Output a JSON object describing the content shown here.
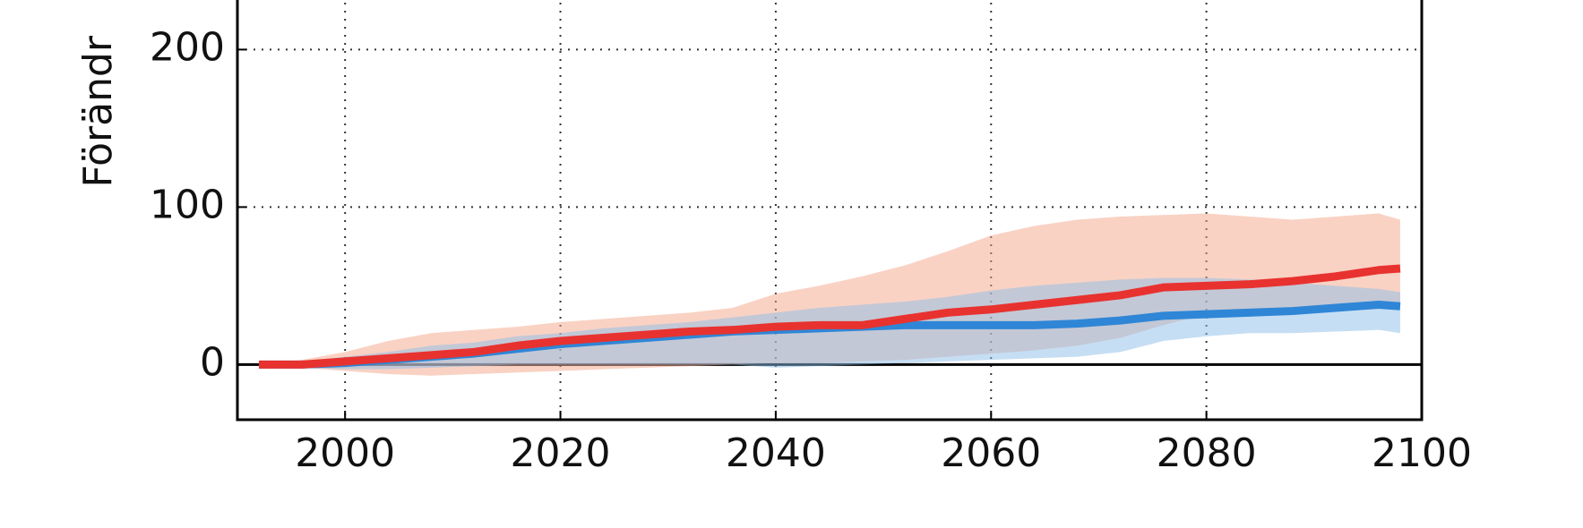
{
  "chart_data": {
    "type": "line",
    "y_label": "Förändr",
    "x": [
      1992,
      1996,
      2000,
      2004,
      2008,
      2012,
      2016,
      2020,
      2024,
      2028,
      2032,
      2036,
      2040,
      2044,
      2048,
      2052,
      2056,
      2060,
      2064,
      2068,
      2072,
      2076,
      2080,
      2084,
      2088,
      2092,
      2096,
      2098
    ],
    "series": [
      {
        "color": "#e8322f",
        "band_color": "#f4a58a",
        "values": [
          0,
          0,
          2,
          4,
          6,
          8,
          12,
          15,
          17,
          19,
          21,
          22,
          24,
          25,
          25,
          29,
          33,
          35,
          38,
          41,
          44,
          49,
          50,
          51,
          53,
          56,
          60,
          61
        ],
        "upper": [
          0,
          3,
          8,
          15,
          20,
          22,
          24,
          27,
          29,
          31,
          33,
          36,
          45,
          50,
          56,
          63,
          72,
          82,
          88,
          92,
          94,
          95,
          96,
          94,
          92,
          94,
          96,
          92
        ],
        "lower": [
          0,
          -2,
          -4,
          -6,
          -7,
          -6,
          -5,
          -4,
          -3,
          -2,
          -1,
          0,
          1,
          1,
          2,
          3,
          5,
          7,
          9,
          12,
          17,
          25,
          32,
          33,
          35,
          37,
          38,
          38
        ]
      },
      {
        "color": "#2f86d6",
        "band_color": "#8dbde8",
        "values": [
          0,
          0,
          1,
          3,
          5,
          7,
          10,
          13,
          15,
          17,
          19,
          21,
          22,
          23,
          24,
          25,
          25,
          25,
          25,
          26,
          28,
          31,
          32,
          33,
          34,
          36,
          38,
          37
        ],
        "upper": [
          0,
          2,
          5,
          8,
          12,
          14,
          18,
          20,
          23,
          25,
          27,
          30,
          33,
          36,
          38,
          40,
          43,
          47,
          50,
          52,
          54,
          55,
          55,
          54,
          52,
          50,
          48,
          46
        ],
        "lower": [
          0,
          -2,
          -3,
          -3,
          -2,
          -1,
          0,
          0,
          0,
          0,
          0,
          0,
          -2,
          -1,
          0,
          1,
          2,
          3,
          4,
          5,
          8,
          15,
          18,
          20,
          20,
          21,
          22,
          20
        ]
      }
    ],
    "xlim": [
      1990,
      2100
    ],
    "xticks": [
      2000,
      2020,
      2040,
      2060,
      2080,
      2100
    ],
    "ylim": [
      -35,
      240
    ],
    "yticks": [
      0,
      100,
      200
    ],
    "grid": true
  }
}
